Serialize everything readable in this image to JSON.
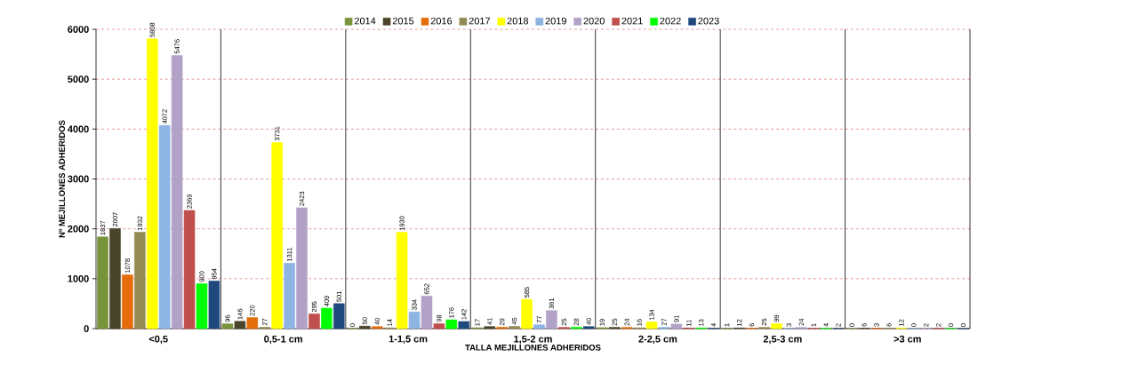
{
  "chart_data": {
    "type": "bar",
    "xlabel": "TALLA MEJILLONES ADHERIDOS",
    "ylabel": "Nº MEJILLONES ADHERIDOS",
    "categories": [
      "<0,5",
      "0,5-1 cm",
      "1-1,5 cm",
      "1,5-2 cm",
      "2-2,5 cm",
      "2,5-3 cm",
      ">3 cm"
    ],
    "series": [
      {
        "name": "2014",
        "color": "#77933c",
        "values": [
          1837,
          96,
          0,
          17,
          19,
          1,
          0
        ]
      },
      {
        "name": "2015",
        "color": "#4a452a",
        "values": [
          2007,
          146,
          50,
          41,
          25,
          12,
          6
        ]
      },
      {
        "name": "2016",
        "color": "#e46c0a",
        "values": [
          1078,
          220,
          40,
          29,
          24,
          6,
          3
        ]
      },
      {
        "name": "2017",
        "color": "#948a54",
        "values": [
          1932,
          27,
          14,
          45,
          16,
          25,
          6
        ]
      },
      {
        "name": "2018",
        "color": "#ffff00",
        "values": [
          5808,
          3731,
          1930,
          585,
          134,
          99,
          12
        ]
      },
      {
        "name": "2019",
        "color": "#8eb4e3",
        "values": [
          4072,
          1311,
          334,
          77,
          27,
          3,
          0
        ]
      },
      {
        "name": "2020",
        "color": "#b3a2c7",
        "values": [
          5476,
          2423,
          652,
          361,
          91,
          24,
          2
        ]
      },
      {
        "name": "2021",
        "color": "#c0504d",
        "values": [
          2369,
          295,
          98,
          25,
          11,
          1,
          2
        ]
      },
      {
        "name": "2022",
        "color": "#00ff00",
        "values": [
          900,
          409,
          176,
          28,
          13,
          4,
          0
        ]
      },
      {
        "name": "2023",
        "color": "#1f497d",
        "values": [
          954,
          501,
          142,
          40,
          4,
          2,
          0
        ]
      }
    ],
    "ylim": [
      0,
      6000
    ],
    "yticks": [
      0,
      1000,
      2000,
      3000,
      4000,
      5000,
      6000
    ],
    "grid": "y",
    "legend": "top",
    "data_labels": true
  }
}
